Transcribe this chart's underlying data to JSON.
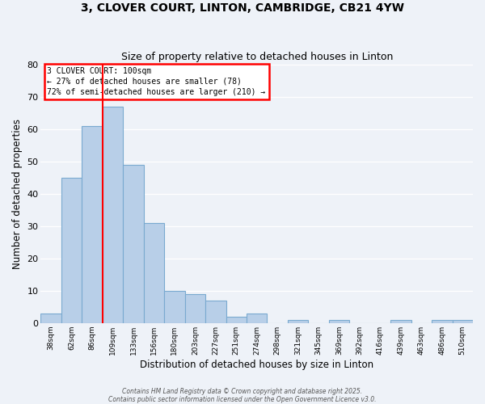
{
  "title": "3, CLOVER COURT, LINTON, CAMBRIDGE, CB21 4YW",
  "subtitle": "Size of property relative to detached houses in Linton",
  "xlabel": "Distribution of detached houses by size in Linton",
  "ylabel": "Number of detached properties",
  "bar_color": "#b8cfe8",
  "bar_edgecolor": "#7aaad0",
  "background_color": "#eef2f8",
  "grid_color": "#ffffff",
  "categories": [
    "38sqm",
    "62sqm",
    "86sqm",
    "109sqm",
    "133sqm",
    "156sqm",
    "180sqm",
    "203sqm",
    "227sqm",
    "251sqm",
    "274sqm",
    "298sqm",
    "321sqm",
    "345sqm",
    "369sqm",
    "392sqm",
    "416sqm",
    "439sqm",
    "463sqm",
    "486sqm",
    "510sqm"
  ],
  "values": [
    3,
    45,
    61,
    67,
    49,
    31,
    10,
    9,
    7,
    2,
    3,
    0,
    1,
    0,
    1,
    0,
    0,
    1,
    0,
    1,
    1
  ],
  "ylim": [
    0,
    80
  ],
  "yticks": [
    0,
    10,
    20,
    30,
    40,
    50,
    60,
    70,
    80
  ],
  "red_line_bin_idx": 2,
  "annotation_line1": "3 CLOVER COURT: 100sqm",
  "annotation_line2": "← 27% of detached houses are smaller (78)",
  "annotation_line3": "72% of semi-detached houses are larger (210) →",
  "footer_line1": "Contains HM Land Registry data © Crown copyright and database right 2025.",
  "footer_line2": "Contains public sector information licensed under the Open Government Licence v3.0."
}
